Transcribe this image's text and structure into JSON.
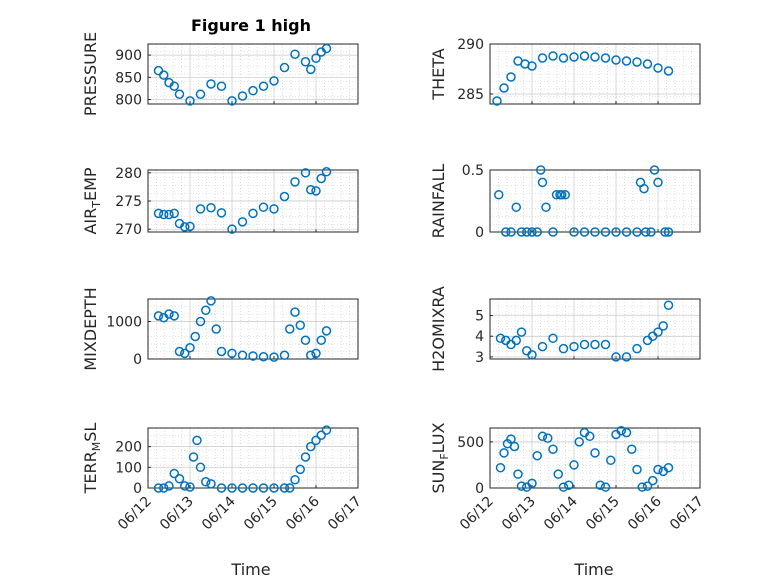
{
  "colors": {
    "marker": "#0072BD",
    "axis": "#262626",
    "grid": "#c8c8c8",
    "background": "#ffffff"
  },
  "chart_data": {
    "type": "scatter",
    "marker": "o",
    "grid": "on",
    "minor_grid": "on",
    "title": "Figure 1 high",
    "xlabel": "Time",
    "x_ticks": [
      "06/12",
      "06/13",
      "06/14",
      "06/15",
      "06/16",
      "06/17"
    ],
    "xlim": [
      "2013-06-12",
      "2013-06-17"
    ],
    "panels": [
      {
        "ylabel": "PRESSURE",
        "ylim": [
          790,
          925
        ],
        "yticks": [
          800,
          850,
          900
        ],
        "x": [
          "06/12 06:00",
          "06/12 09:00",
          "06/12 12:00",
          "06/12 15:00",
          "06/12 18:00",
          "06/13 00:00",
          "06/13 06:00",
          "06/13 12:00",
          "06/13 18:00",
          "06/14 00:00",
          "06/14 06:00",
          "06/14 12:00",
          "06/14 18:00",
          "06/15 00:00",
          "06/15 06:00",
          "06/15 12:00",
          "06/15 18:00",
          "06/15 21:00",
          "06/16 00:00",
          "06/16 03:00",
          "06/16 06:00"
        ],
        "y": [
          865,
          855,
          838,
          830,
          812,
          797,
          812,
          835,
          830,
          797,
          808,
          820,
          830,
          842,
          872,
          902,
          885,
          868,
          893,
          907,
          915
        ]
      },
      {
        "ylabel": "THETA",
        "ylim": [
          284,
          290
        ],
        "yticks": [
          285,
          290
        ],
        "x": [
          "06/12 04:00",
          "06/12 08:00",
          "06/12 12:00",
          "06/12 16:00",
          "06/12 20:00",
          "06/13 00:00",
          "06/13 06:00",
          "06/13 12:00",
          "06/13 18:00",
          "06/14 00:00",
          "06/14 06:00",
          "06/14 12:00",
          "06/14 18:00",
          "06/15 00:00",
          "06/15 06:00",
          "06/15 12:00",
          "06/15 18:00",
          "06/16 00:00",
          "06/16 06:00"
        ],
        "y": [
          284.3,
          285.6,
          286.7,
          288.3,
          288.0,
          287.8,
          288.6,
          288.8,
          288.6,
          288.7,
          288.8,
          288.7,
          288.6,
          288.4,
          288.3,
          288.2,
          288.0,
          287.6,
          287.3
        ]
      },
      {
        "ylabel": "AIR_TEMP",
        "ylim": [
          269.5,
          280.5
        ],
        "yticks": [
          270,
          275,
          280
        ],
        "x": [
          "06/12 06:00",
          "06/12 09:00",
          "06/12 12:00",
          "06/12 15:00",
          "06/12 18:00",
          "06/12 21:00",
          "06/13 00:00",
          "06/13 06:00",
          "06/13 12:00",
          "06/13 18:00",
          "06/14 00:00",
          "06/14 06:00",
          "06/14 12:00",
          "06/14 18:00",
          "06/15 00:00",
          "06/15 06:00",
          "06/15 12:00",
          "06/15 18:00",
          "06/15 21:00",
          "06/16 00:00",
          "06/16 03:00",
          "06/16 06:00"
        ],
        "y": [
          272.8,
          272.6,
          272.6,
          272.8,
          271.0,
          270.4,
          270.5,
          273.6,
          273.8,
          272.9,
          270.0,
          271.3,
          272.8,
          273.9,
          273.6,
          275.8,
          278.4,
          280.0,
          277.0,
          276.8,
          279.0,
          280.2
        ]
      },
      {
        "ylabel": "RAINFALL",
        "ylim": [
          0,
          0.5
        ],
        "yticks": [
          0,
          0.5
        ],
        "x": [
          "06/12 05:00",
          "06/12 09:00",
          "06/12 12:00",
          "06/12 15:00",
          "06/12 18:00",
          "06/12 21:00",
          "06/13 00:00",
          "06/13 03:00",
          "06/13 05:00",
          "06/13 06:00",
          "06/13 08:00",
          "06/13 12:00",
          "06/13 14:00",
          "06/13 16:00",
          "06/13 17:00",
          "06/13 19:00",
          "06/14 00:00",
          "06/14 06:00",
          "06/14 12:00",
          "06/14 18:00",
          "06/15 00:00",
          "06/15 06:00",
          "06/15 12:00",
          "06/15 14:00",
          "06/15 16:00",
          "06/15 17:00",
          "06/15 20:00",
          "06/15 22:00",
          "06/16 00:00",
          "06/16 04:00",
          "06/16 06:00"
        ],
        "y": [
          0.3,
          0,
          0,
          0.2,
          0,
          0,
          0,
          0,
          0.5,
          0.4,
          0.2,
          0,
          0.3,
          0.3,
          0.3,
          0.3,
          0,
          0,
          0,
          0,
          0,
          0,
          0,
          0.4,
          0.35,
          0,
          0,
          0.5,
          0.4,
          0,
          0
        ]
      },
      {
        "ylabel": "MIXDEPTH",
        "ylim": [
          0,
          1600
        ],
        "yticks": [
          0,
          1000
        ],
        "x": [
          "06/12 06:00",
          "06/12 09:00",
          "06/12 12:00",
          "06/12 15:00",
          "06/12 18:00",
          "06/12 21:00",
          "06/13 00:00",
          "06/13 03:00",
          "06/13 06:00",
          "06/13 09:00",
          "06/13 12:00",
          "06/13 15:00",
          "06/13 18:00",
          "06/14 00:00",
          "06/14 06:00",
          "06/14 12:00",
          "06/14 18:00",
          "06/15 00:00",
          "06/15 06:00",
          "06/15 09:00",
          "06/15 12:00",
          "06/15 15:00",
          "06/15 18:00",
          "06/15 21:00",
          "06/16 00:00",
          "06/16 03:00",
          "06/16 06:00"
        ],
        "y": [
          1150,
          1100,
          1200,
          1150,
          200,
          150,
          300,
          600,
          1000,
          1300,
          1550,
          800,
          200,
          150,
          100,
          80,
          60,
          50,
          100,
          800,
          1250,
          900,
          500,
          100,
          150,
          500,
          750
        ]
      },
      {
        "ylabel": "H2OMIXRA",
        "ylim": [
          2.9,
          5.8
        ],
        "yticks": [
          3,
          4,
          5
        ],
        "x": [
          "06/12 06:00",
          "06/12 09:00",
          "06/12 12:00",
          "06/12 15:00",
          "06/12 18:00",
          "06/12 21:00",
          "06/13 00:00",
          "06/13 06:00",
          "06/13 12:00",
          "06/13 18:00",
          "06/14 00:00",
          "06/14 06:00",
          "06/14 12:00",
          "06/14 18:00",
          "06/15 00:00",
          "06/15 06:00",
          "06/15 12:00",
          "06/15 18:00",
          "06/15 21:00",
          "06/16 00:00",
          "06/16 03:00",
          "06/16 06:00"
        ],
        "y": [
          3.9,
          3.8,
          3.6,
          3.8,
          4.2,
          3.3,
          3.1,
          3.5,
          3.9,
          3.4,
          3.5,
          3.6,
          3.6,
          3.6,
          3.0,
          3.0,
          3.4,
          3.8,
          4.0,
          4.2,
          4.5,
          5.5
        ]
      },
      {
        "ylabel": "TERR_MSL",
        "ylim": [
          0,
          290
        ],
        "yticks": [
          0,
          100,
          200
        ],
        "x": [
          "06/12 06:00",
          "06/12 09:00",
          "06/12 12:00",
          "06/12 15:00",
          "06/12 18:00",
          "06/12 21:00",
          "06/13 00:00",
          "06/13 02:00",
          "06/13 04:00",
          "06/13 06:00",
          "06/13 09:00",
          "06/13 12:00",
          "06/13 18:00",
          "06/14 00:00",
          "06/14 06:00",
          "06/14 12:00",
          "06/14 18:00",
          "06/15 00:00",
          "06/15 06:00",
          "06/15 09:00",
          "06/15 12:00",
          "06/15 15:00",
          "06/15 18:00",
          "06/15 21:00",
          "06/16 00:00",
          "06/16 03:00",
          "06/16 06:00"
        ],
        "y": [
          0,
          0,
          10,
          70,
          45,
          10,
          5,
          150,
          230,
          100,
          30,
          20,
          0,
          0,
          0,
          0,
          0,
          0,
          0,
          0,
          40,
          90,
          150,
          200,
          230,
          255,
          280
        ]
      },
      {
        "ylabel": "SUN_FLUX",
        "ylim": [
          0,
          650
        ],
        "yticks": [
          0,
          500
        ],
        "x": [
          "06/12 06:00",
          "06/12 08:00",
          "06/12 10:00",
          "06/12 12:00",
          "06/12 14:00",
          "06/12 16:00",
          "06/12 18:00",
          "06/12 21:00",
          "06/13 00:00",
          "06/13 03:00",
          "06/13 06:00",
          "06/13 09:00",
          "06/13 12:00",
          "06/13 15:00",
          "06/13 18:00",
          "06/13 21:00",
          "06/14 00:00",
          "06/14 03:00",
          "06/14 06:00",
          "06/14 09:00",
          "06/14 12:00",
          "06/14 15:00",
          "06/14 18:00",
          "06/14 21:00",
          "06/15 00:00",
          "06/15 03:00",
          "06/15 06:00",
          "06/15 09:00",
          "06/15 12:00",
          "06/15 15:00",
          "06/15 18:00",
          "06/15 21:00",
          "06/16 00:00",
          "06/16 03:00",
          "06/16 06:00"
        ],
        "y": [
          220,
          380,
          480,
          530,
          450,
          150,
          20,
          10,
          50,
          350,
          560,
          540,
          420,
          150,
          10,
          30,
          250,
          500,
          600,
          560,
          380,
          30,
          10,
          300,
          580,
          620,
          600,
          420,
          200,
          10,
          20,
          80,
          200,
          180,
          220
        ]
      }
    ]
  }
}
